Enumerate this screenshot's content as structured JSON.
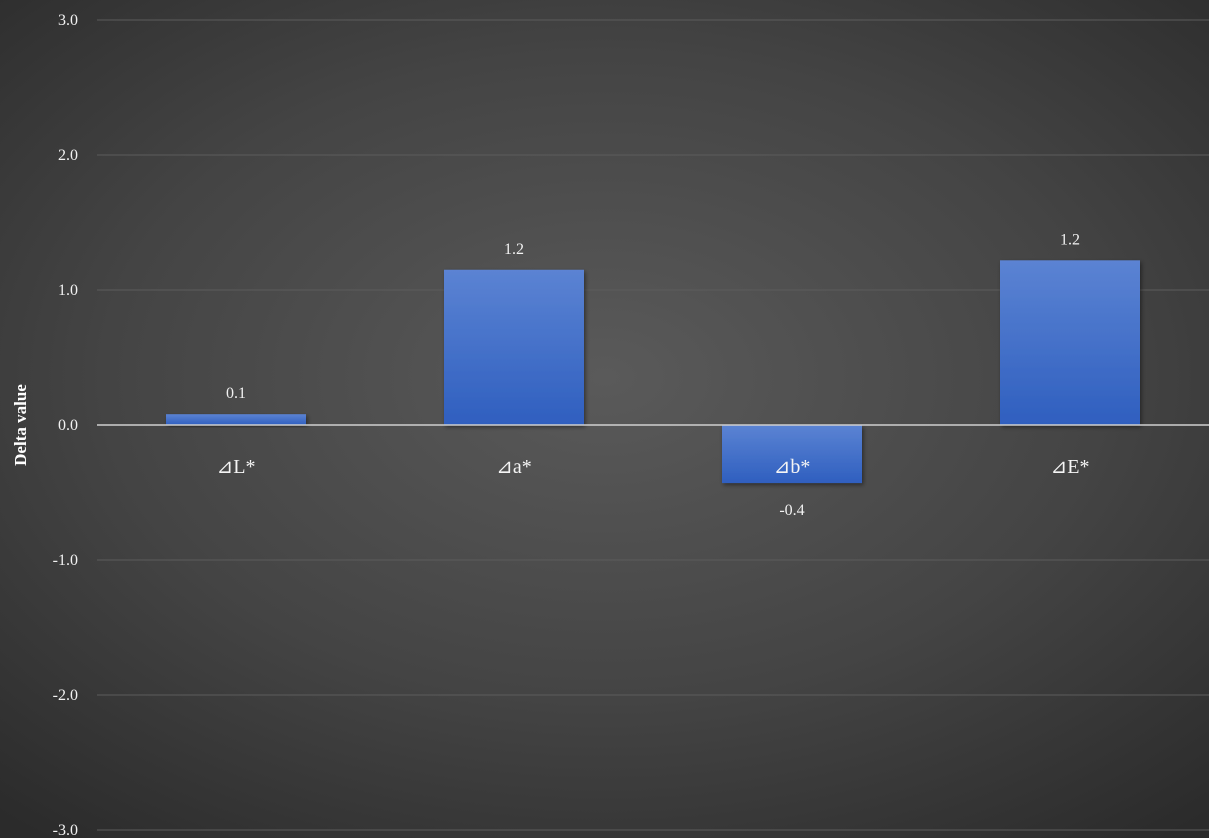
{
  "chart_data": {
    "type": "bar",
    "title": "",
    "xlabel": "",
    "ylabel": "Delta value",
    "categories": [
      "⊿L*",
      "⊿a*",
      "⊿b*",
      "⊿E*"
    ],
    "values": [
      0.08,
      1.15,
      -0.43,
      1.22
    ],
    "data_labels": [
      "0.1",
      "1.2",
      "-0.4",
      "1.2"
    ],
    "ylim": [
      -3.0,
      3.0
    ],
    "yticks": [
      3.0,
      2.0,
      1.0,
      0.0,
      -1.0,
      -2.0,
      -3.0
    ],
    "ytick_labels": [
      "3.0",
      "2.0",
      "1.0",
      "0.0",
      "-1.0",
      "-2.0",
      "-3.0"
    ],
    "grid": true,
    "legend": "none",
    "colors": {
      "bar_top": "#5b83d3",
      "bar_bottom": "#2f5fbf",
      "gridline": "#5c5c5c",
      "zero_line": "#d0d0d0",
      "text": "#f2f2f2"
    }
  }
}
